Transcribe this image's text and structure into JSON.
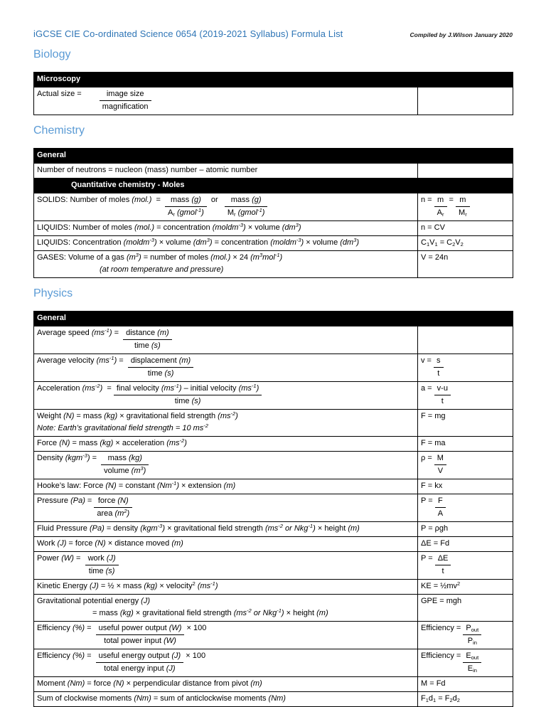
{
  "header": {
    "title": "iGCSE CIE Co-ordinated Science 0654 (2019-2021 Syllabus) Formula List",
    "compiled_by": "Compiled by J.Wilson January 2020"
  },
  "colors": {
    "title_blue": "#2E75B6",
    "heading_blue": "#5B9BD5",
    "table_bar_bg": "#000000",
    "table_bar_text": "#FFFFFF"
  },
  "sections": [
    {
      "heading": "Biology",
      "tables": [
        {
          "rows": [
            {
              "type": "head",
              "text": "Microscopy"
            },
            {
              "type": "row",
              "c1": [
                [
                  "Actual size = ",
                  {
                    "p": 22
                  },
                  {
                    "f": {
                      "n": " image size ",
                      "d": "magnification"
                    }
                  }
                ]
              ],
              "c2": []
            }
          ]
        }
      ]
    },
    {
      "heading": "Chemistry",
      "tables": [
        {
          "rows": [
            {
              "type": "head",
              "text": "General"
            },
            {
              "type": "row",
              "c1": [
                [
                  "Number of neutrons = nucleon (mass) number – atomic number"
                ]
              ],
              "c2": []
            },
            {
              "type": "subhead",
              "text": "Quantitative chemistry - Moles"
            },
            {
              "type": "row",
              "c1": [
                [
                  "SOLIDS: Number of moles *(mol.)*  =  ",
                  {
                    "f": {
                      "n": "mass *(g)*",
                      "d": "A_{r} *(gmol^{-1})*"
                    }
                  },
                  "  or   ",
                  {
                    "f": {
                      "n": "mass *(g)*",
                      "d": "M_{r} *(gmol^{-1})*"
                    }
                  }
                ]
              ],
              "c2": [
                [
                  "n = ",
                  {
                    "f": {
                      "n": "m",
                      "d": "A_{r}"
                    }
                  },
                  " = ",
                  {
                    "f": {
                      "n": "m",
                      "d": "M_{r}"
                    }
                  }
                ]
              ]
            },
            {
              "type": "row",
              "c1": [
                [
                  "LIQUIDS: Number of moles *(mol.)* = concentration *(moldm^{-3})* × volume *(dm^{3})*"
                ]
              ],
              "c2": [
                [
                  "n = CV"
                ]
              ]
            },
            {
              "type": "row",
              "c1": [
                [
                  "LIQUIDS: Concentration *(moldm^{-3})* × volume *(dm^{3})* = concentration *(moldm^{-3})* × volume *(dm^{3})*"
                ]
              ],
              "c2": [
                [
                  "C_{1}V_{1} = C_{2}V_{2}"
                ]
              ]
            },
            {
              "type": "row",
              "c1": [
                [
                  "GASES: Volume of a gas *(m^{3})* = number of moles *(mol.)* × 24 *(m^{3}mol^{-1})*"
                ],
                [
                  {
                    "p": 88
                  },
                  "*(at room temperature and pressure)*"
                ]
              ],
              "c2": [
                [
                  "V = 24n"
                ]
              ]
            }
          ]
        }
      ]
    },
    {
      "heading": "Physics",
      "tables": [
        {
          "rows": [
            {
              "type": "head",
              "text": "General"
            },
            {
              "type": "row",
              "c1": [
                [
                  "Average speed *(ms^{-1})* =  ",
                  {
                    "f": {
                      "n": "distance *(m)*",
                      "d": "time *(s)*"
                    }
                  }
                ]
              ],
              "c2": []
            },
            {
              "type": "row",
              "c1": [
                [
                  "Average velocity *(ms^{-1})* =  ",
                  {
                    "f": {
                      "n": "displacement *(m)*",
                      "d": "time *(s)*"
                    }
                  }
                ]
              ],
              "c2": [
                [
                  "v = ",
                  {
                    "f": {
                      "n": "s",
                      "d": "t"
                    }
                  }
                ]
              ]
            },
            {
              "type": "row",
              "c1": [
                [
                  "Acceleration *(ms^{-2})*  = ",
                  {
                    "f": {
                      "n": "final velocity *(ms^{-1})* – initial velocity *(ms^{-1})*",
                      "d": "time *(s)*"
                    }
                  }
                ]
              ],
              "c2": [
                [
                  "a = ",
                  {
                    "f": {
                      "n": "v-u",
                      "d": "t"
                    }
                  }
                ]
              ]
            },
            {
              "type": "row",
              "c1": [
                [
                  "Weight *(N)* = mass *(kg)* × gravitational field strength *(ms^{-2})*"
                ],
                [
                  "*Note: Earth’s gravitational field strength = 10 ms^{-2}*"
                ]
              ],
              "c2": [
                [
                  "F = mg"
                ]
              ]
            },
            {
              "type": "row",
              "c1": [
                [
                  "Force *(N)* = mass *(kg)* × acceleration *(ms^{-2})*"
                ]
              ],
              "c2": [
                [
                  "F = ma"
                ]
              ]
            },
            {
              "type": "row",
              "c1": [
                [
                  "Density *(kgm^{-3})* =  ",
                  {
                    "f": {
                      "n": "mass *(kg)*",
                      "d": "volume *(m^{3})*"
                    }
                  }
                ]
              ],
              "c2": [
                [
                  "ρ = ",
                  {
                    "f": {
                      "n": "M",
                      "d": "V"
                    }
                  }
                ]
              ]
            },
            {
              "type": "row",
              "c1": [
                [
                  "Hooke’s law: Force *(N)* = constant *(Nm^{-1})* × extension *(m)*"
                ]
              ],
              "c2": [
                [
                  "F = kx"
                ]
              ]
            },
            {
              "type": "row",
              "c1": [
                [
                  "Pressure *(Pa)* = ",
                  {
                    "f": {
                      "n": "force *(N)*",
                      "d": "area *(m^{2})*"
                    }
                  }
                ]
              ],
              "c2": [
                [
                  "P = ",
                  {
                    "f": {
                      "n": "F",
                      "d": "A"
                    }
                  }
                ]
              ]
            },
            {
              "type": "row",
              "c1": [
                [
                  "Fluid Pressure *(Pa)* = density *(kgm^{-3})* × gravitational field strength *(ms^{-2} or Nkg^{-1})* × height *(m)*"
                ]
              ],
              "c2": [
                [
                  "P = ρgh"
                ]
              ]
            },
            {
              "type": "row",
              "c1": [
                [
                  "Work *(J)* = force *(N)* × distance moved *(m)*"
                ]
              ],
              "c2": [
                [
                  "ΔE = Fd"
                ]
              ]
            },
            {
              "type": "row",
              "c1": [
                [
                  "Power *(W)* =  ",
                  {
                    "f": {
                      "n": "work *(J)*",
                      "d": "time *(s)*"
                    }
                  }
                ]
              ],
              "c2": [
                [
                  "P = ",
                  {
                    "f": {
                      "n": "ΔE",
                      "d": "t"
                    }
                  }
                ]
              ]
            },
            {
              "type": "row",
              "c1": [
                [
                  "Kinetic Energy *(J)* = ½ × mass *(kg)* × velocity^{2} *(ms^{-1})*"
                ]
              ],
              "c2": [
                [
                  "KE = ½mv^{2}"
                ]
              ]
            },
            {
              "type": "row",
              "c1": [
                [
                  "Gravitational potential energy *(J)*"
                ],
                [
                  {
                    "p": 78
                  },
                  "= mass *(kg)* × gravitational field strength *(ms^{-2} or Nkg^{-1})* × height *(m)*"
                ]
              ],
              "c2": [
                [
                  "GPE = mgh"
                ]
              ]
            },
            {
              "type": "row",
              "c1": [
                [
                  "Efficiency *(%)* =  ",
                  {
                    "f": {
                      "n": "useful power output *(W)*",
                      "d": "total power input *(W)*"
                    }
                  },
                  " × 100"
                ]
              ],
              "c2": [
                [
                  "Efficiency = ",
                  {
                    "f": {
                      "n": "P_{out}",
                      "d": "P_{in}"
                    }
                  }
                ]
              ]
            },
            {
              "type": "row",
              "c1": [
                [
                  "Efficiency *(%)* =  ",
                  {
                    "f": {
                      "n": "useful energy output *(J)*",
                      "d": "total energy input *(J)*"
                    }
                  },
                  " × 100"
                ]
              ],
              "c2": [
                [
                  "Efficiency = ",
                  {
                    "f": {
                      "n": "E_{out}",
                      "d": "E_{in}"
                    }
                  }
                ]
              ]
            },
            {
              "type": "row",
              "c1": [
                [
                  "Moment *(Nm)* = force *(N)* × perpendicular distance from pivot *(m)*"
                ]
              ],
              "c2": [
                [
                  "M = Fd"
                ]
              ]
            },
            {
              "type": "row",
              "c1": [
                [
                  "Sum of clockwise moments *(Nm)* = sum of anticlockwise moments *(Nm)*"
                ]
              ],
              "c2": [
                [
                  "F_{1}d_{1} = F_{2}d_{2}"
                ]
              ]
            }
          ]
        }
      ]
    }
  ]
}
